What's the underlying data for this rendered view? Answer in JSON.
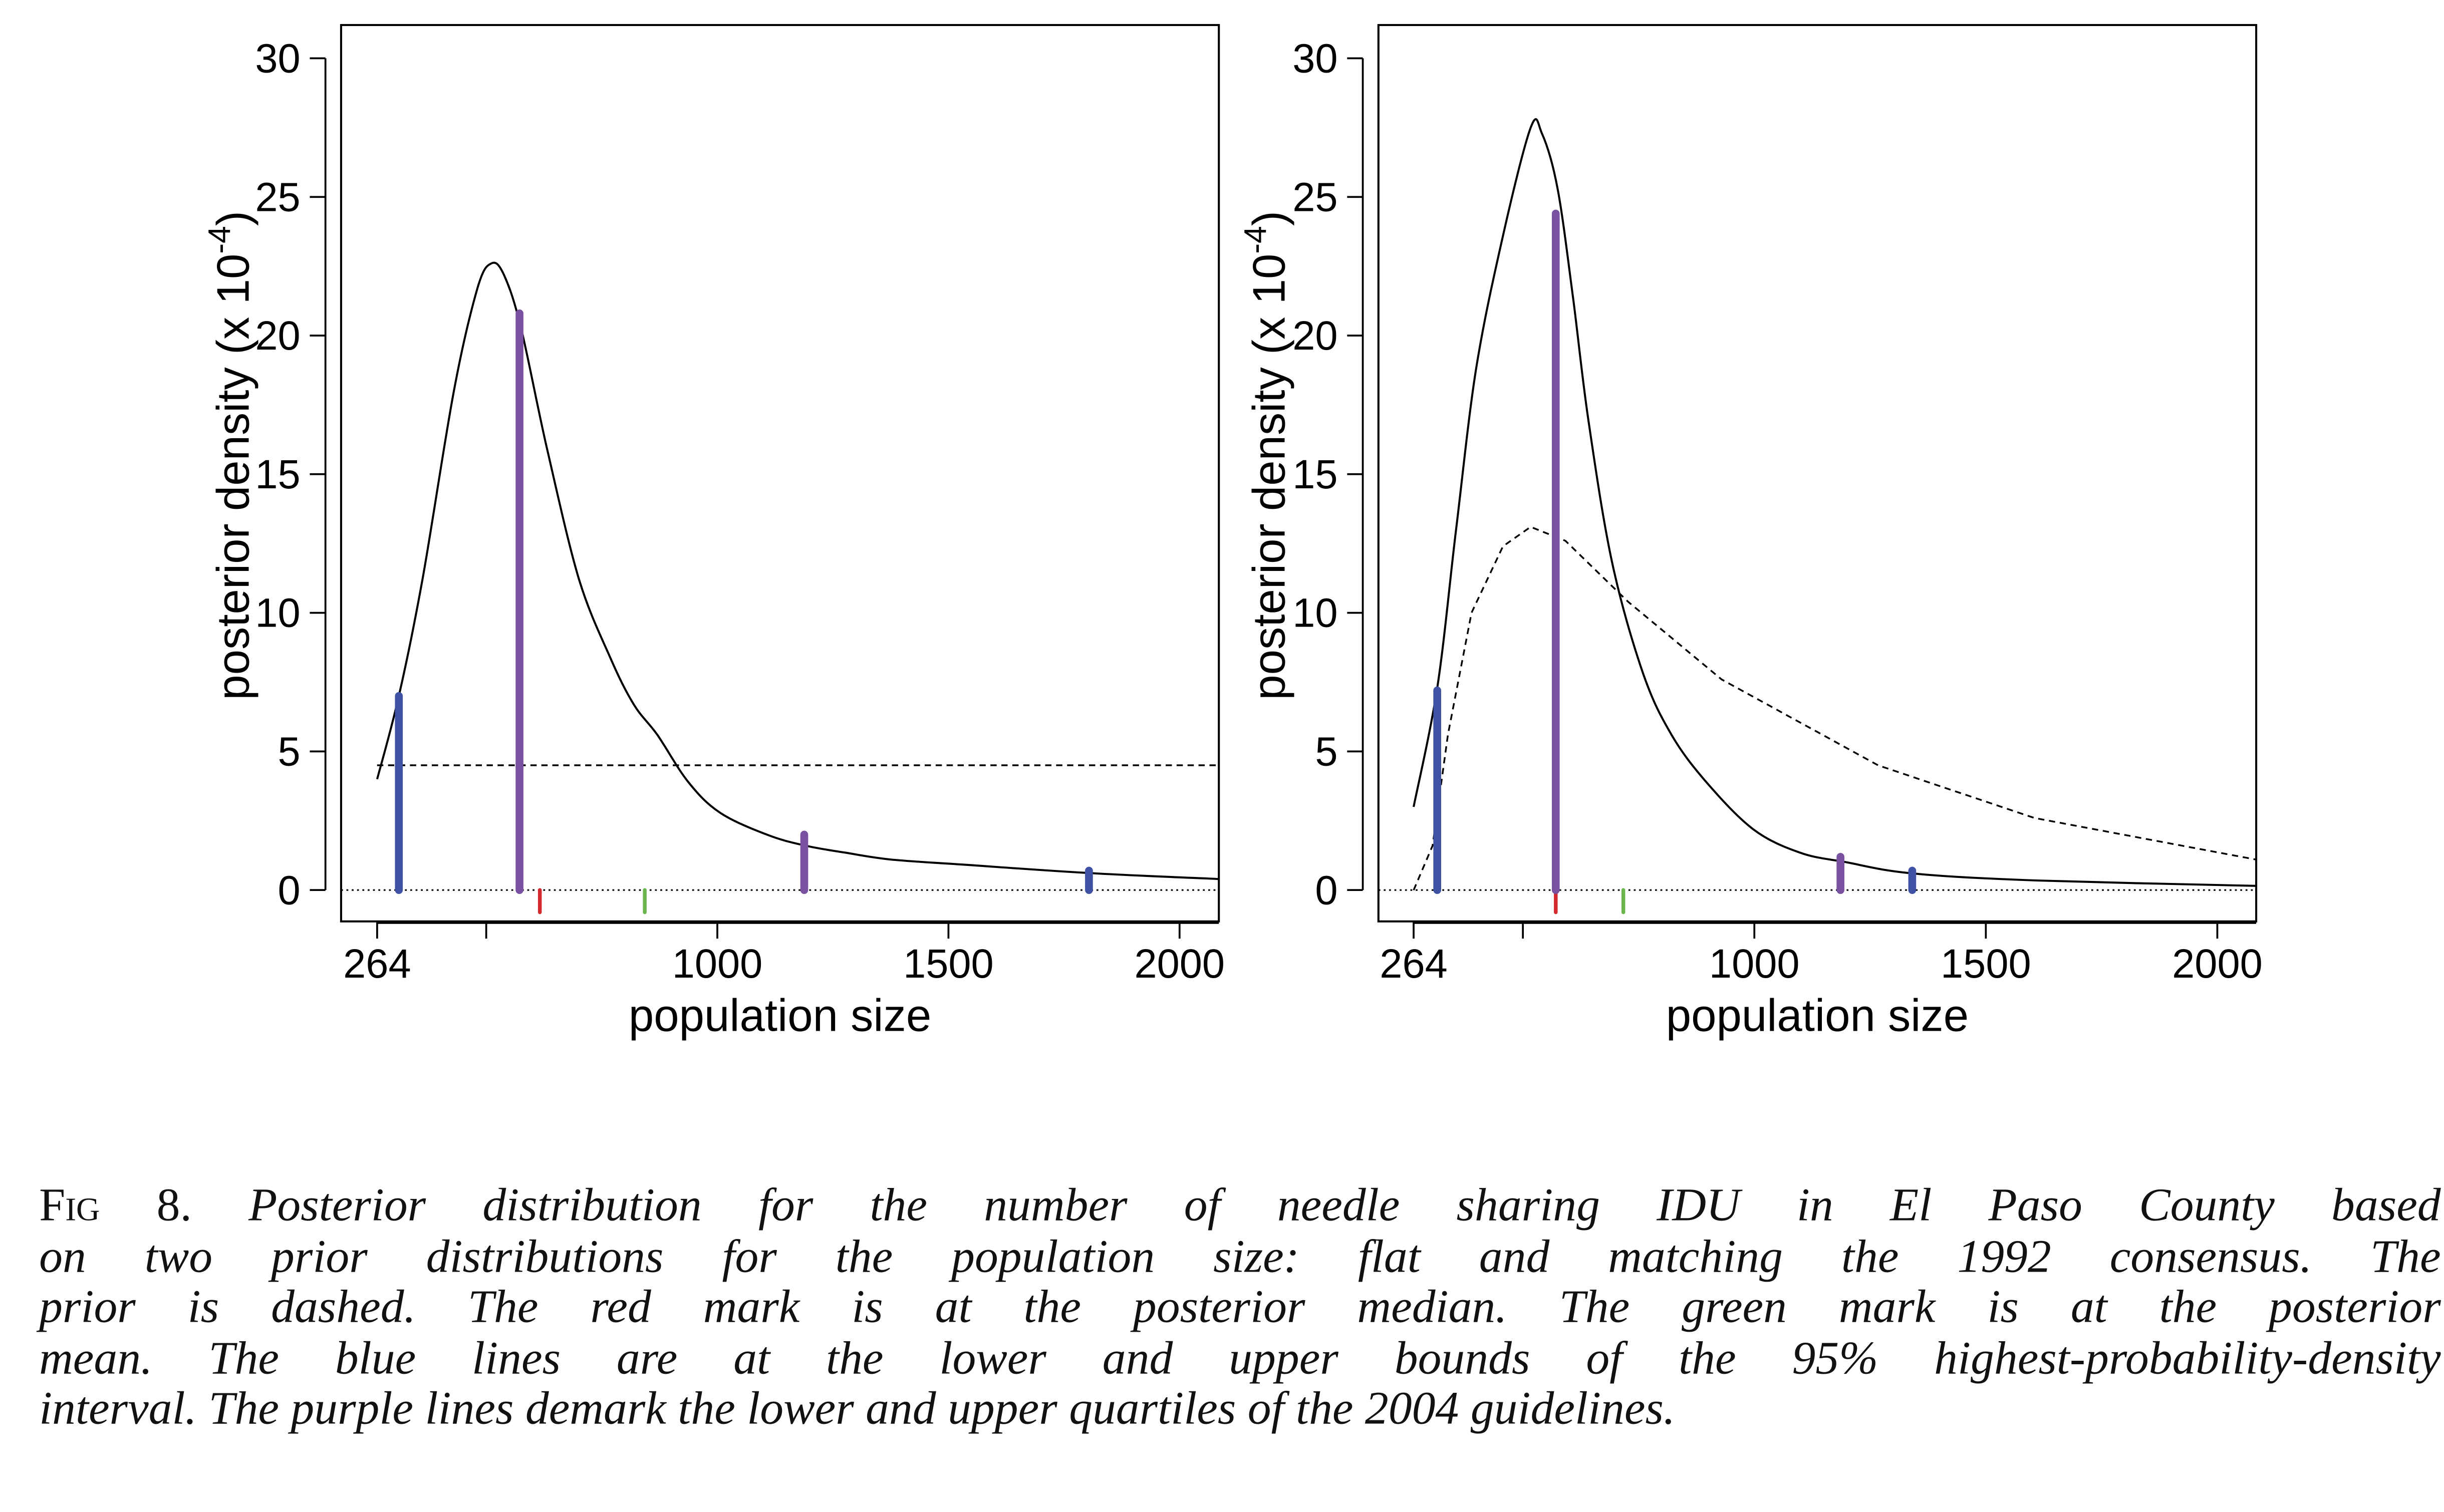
{
  "chart_data": [
    {
      "type": "line",
      "panel": "left",
      "xlabel": "population size",
      "ylabel": "posterior density (x 10",
      "ylabel_exponent": "-4",
      "ylabel_close": ")",
      "xlim": [
        186,
        2085
      ],
      "ylim": [
        -1.13,
        31.2
      ],
      "xticks": [
        264,
        500,
        1000,
        1500,
        2000
      ],
      "xtick_labels": [
        "264",
        "",
        "1000",
        "1500",
        "2000"
      ],
      "yticks": [
        0,
        5,
        10,
        15,
        20,
        25,
        30
      ],
      "ytick_labels": [
        "0",
        "5",
        "10",
        "15",
        "20",
        "25",
        "30"
      ],
      "grid": false,
      "posterior": {
        "x": [
          264,
          311,
          362,
          430,
          481,
          511,
          538,
          575,
          633,
          701,
          768,
          819,
          870,
          937,
          1005,
          1107,
          1191,
          1276,
          1377,
          1547,
          1817,
          2085
        ],
        "y": [
          4.0,
          7.0,
          11.2,
          18.0,
          21.7,
          22.6,
          22.2,
          20.3,
          15.8,
          11.2,
          8.4,
          6.7,
          5.6,
          3.9,
          2.8,
          2.0,
          1.6,
          1.35,
          1.1,
          0.9,
          0.6,
          0.4
        ]
      },
      "prior": {
        "x": [
          264,
          2085
        ],
        "y": [
          4.5,
          4.5
        ]
      },
      "marks": [
        {
          "kind": "hpd-lower",
          "x": 311,
          "height": 7.0,
          "color": "#3f51a3"
        },
        {
          "kind": "quartile-lower",
          "x": 572,
          "height": 20.8,
          "color": "#7851a0"
        },
        {
          "kind": "median",
          "x": 616,
          "height": -0.8,
          "color": "#d42a2f"
        },
        {
          "kind": "mean",
          "x": 843,
          "height": -0.8,
          "color": "#6ab64c"
        },
        {
          "kind": "quartile-upper",
          "x": 1188,
          "height": 2.0,
          "color": "#7851a0"
        },
        {
          "kind": "hpd-upper",
          "x": 1804,
          "height": 0.7,
          "color": "#3f51a3"
        }
      ]
    },
    {
      "type": "line",
      "panel": "right",
      "xlabel": "population size",
      "ylabel": "posterior density (x 10",
      "ylabel_exponent": "-4",
      "ylabel_close": ")",
      "xlim": [
        188,
        2084
      ],
      "ylim": [
        -1.13,
        31.2
      ],
      "xticks": [
        264,
        500,
        1000,
        1500,
        2000
      ],
      "xtick_labels": [
        "264",
        "",
        "1000",
        "1500",
        "2000"
      ],
      "yticks": [
        0,
        5,
        10,
        15,
        20,
        25,
        30
      ],
      "ytick_labels": [
        "0",
        "5",
        "10",
        "15",
        "20",
        "25",
        "30"
      ],
      "grid": false,
      "posterior": {
        "x": [
          264,
          315,
          355,
          399,
          457,
          517,
          541,
          575,
          608,
          642,
          693,
          760,
          821,
          896,
          997,
          1098,
          1199,
          1341,
          1605,
          2084
        ],
        "y": [
          3.0,
          7.3,
          12.9,
          18.8,
          23.6,
          27.5,
          27.3,
          25.3,
          21.4,
          16.9,
          11.8,
          7.8,
          5.6,
          3.9,
          2.2,
          1.35,
          1.0,
          0.6,
          0.35,
          0.15
        ]
      },
      "prior": {
        "x": [
          264,
          305,
          338,
          389,
          457,
          517,
          592,
          727,
          929,
          1267,
          1605,
          2084
        ],
        "y": [
          0,
          1.6,
          5.6,
          10.0,
          12.4,
          13.1,
          12.6,
          10.4,
          7.6,
          4.5,
          2.6,
          1.1
        ]
      },
      "marks": [
        {
          "kind": "hpd-lower",
          "x": 315,
          "height": 7.2,
          "color": "#3f51a3"
        },
        {
          "kind": "median",
          "x": 571,
          "height": -0.8,
          "color": "#d42a2f"
        },
        {
          "kind": "quartile-lower",
          "x": 571,
          "height": 24.4,
          "color": "#7851a0"
        },
        {
          "kind": "mean",
          "x": 717,
          "height": -0.8,
          "color": "#6ab64c"
        },
        {
          "kind": "quartile-upper",
          "x": 1186,
          "height": 1.2,
          "color": "#7851a0"
        },
        {
          "kind": "hpd-upper",
          "x": 1341,
          "height": 0.7,
          "color": "#3f51a3"
        }
      ]
    }
  ],
  "caption": {
    "figure_label": "Fig 8.",
    "lines": [
      "Posterior distribution for the number of needle sharing IDU in El Paso County based",
      "on two prior distributions for the population size: flat and matching the 1992 consensus. The",
      "prior is dashed. The red mark is at the posterior median. The green mark is at the posterior",
      "mean. The blue lines are at the lower and upper bounds of the 95% highest-probability-density",
      "interval. The purple lines demark the lower and upper quartiles of the 2004 guidelines."
    ]
  }
}
